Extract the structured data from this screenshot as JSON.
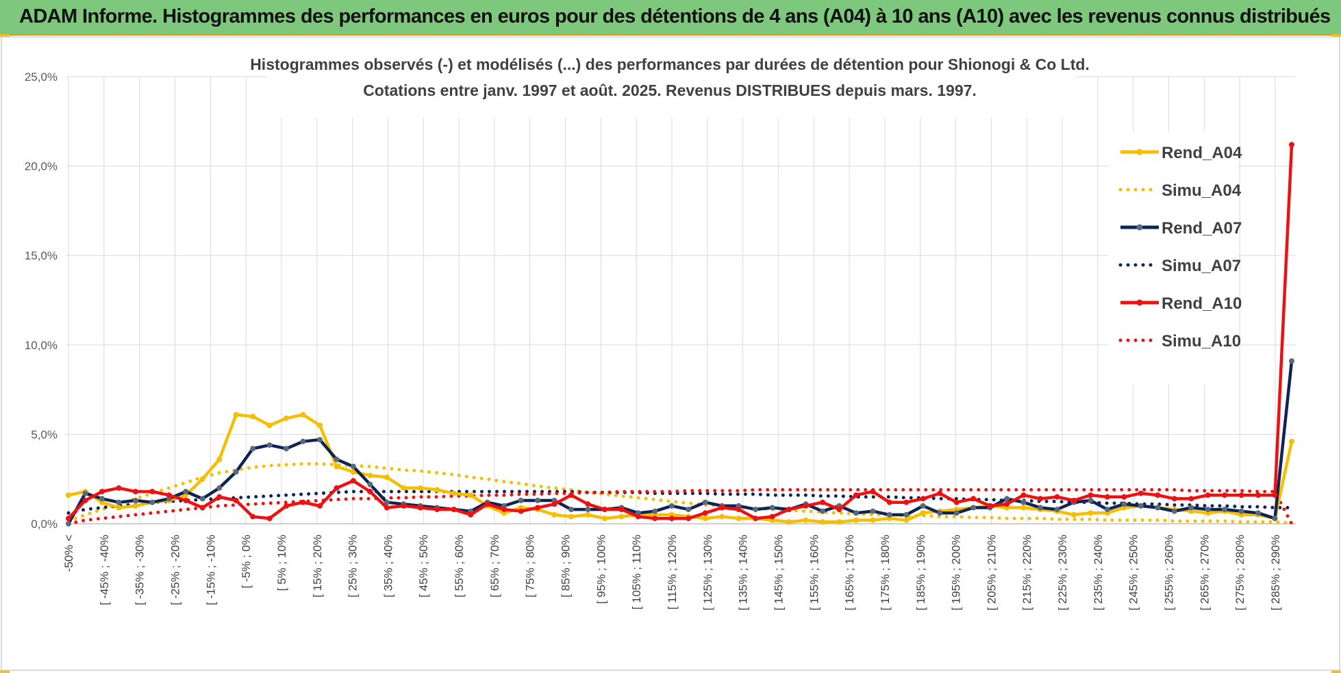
{
  "header": {
    "banner_title": "ADAM Informe. Histogrammes des performances en euros pour des détentions de 4 ans (A04) à 10 ans (A10) avec les revenus connus distribués"
  },
  "colors": {
    "banner_bg": "#7dc87d",
    "corner_accent": "#f0c020",
    "A04": "#f5be00",
    "A07": "#0d2455",
    "A10": "#ee1111",
    "A07_marker": "#5a6a7e",
    "grid": "#d9d9d9"
  },
  "chart_data": {
    "type": "line",
    "title": "Histogrammes observés (-) et modélisés (...) des performances par durées de détention pour Shionogi & Co Ltd.",
    "subtitle": "Cotations entre janv. 1997 et août. 2025. Revenus DISTRIBUES depuis mars. 1997.",
    "xlabel": "",
    "ylabel": "",
    "ylim": [
      0,
      25
    ],
    "y_ticks": [
      "0,0%",
      "5,0%",
      "10,0%",
      "15,0%",
      "20,0%",
      "25,0%"
    ],
    "grid": true,
    "legend_position": "right",
    "x_tick_labels": [
      "-50% <",
      "[ -45% ; -40%",
      "[ -35% ; -30%",
      "[ -25% ; -20%",
      "[ -15% ; -10%",
      "[ -5% ; 0%",
      "[ 5% ; 10%",
      "[ 15% ; 20%",
      "[ 25% ; 30%",
      "[ 35% ; 40%",
      "[ 45% ; 50%",
      "[ 55% ; 60%",
      "[ 65% ; 70%",
      "[ 75% ; 80%",
      "[ 85% ; 90%",
      "[ 95% ; 100%",
      "[ 105% ; 110%",
      "[ 115% ; 120%",
      "[ 125% ; 130%",
      "[ 135% ; 140%",
      "[ 145% ; 150%",
      "[ 155% ; 160%",
      "[ 165% ; 170%",
      "[ 175% ; 180%",
      "[ 185% ; 190%",
      "[ 195% ; 200%",
      "[ 205% ; 210%",
      "[ 215% ; 220%",
      "[ 225% ; 230%",
      "[ 235% ; 240%",
      "[ 245% ; 250%",
      "[ 255% ; 260%",
      "[ 265% ; 270%",
      "[ 275% ; 280%",
      "[ 285% ; 290%"
    ],
    "series": [
      {
        "name": "Rend_A04",
        "style": "solid",
        "color": "#f5be00",
        "values": [
          1.6,
          1.8,
          1.2,
          0.9,
          1.0,
          1.2,
          1.3,
          1.6,
          2.5,
          3.6,
          6.1,
          6.0,
          5.5,
          5.9,
          6.1,
          5.5,
          3.2,
          2.9,
          2.7,
          2.6,
          2.0,
          2.0,
          1.9,
          1.7,
          1.6,
          1.0,
          0.6,
          0.9,
          0.8,
          0.5,
          0.4,
          0.5,
          0.3,
          0.4,
          0.5,
          0.5,
          0.5,
          0.4,
          0.3,
          0.4,
          0.3,
          0.3,
          0.2,
          0.1,
          0.2,
          0.1,
          0.1,
          0.2,
          0.2,
          0.3,
          0.2,
          0.6,
          0.7,
          0.8,
          0.9,
          1.0,
          0.9,
          0.9,
          0.8,
          0.7,
          0.5,
          0.6,
          0.6,
          0.9,
          1.0,
          0.9,
          0.8,
          0.7,
          0.6,
          0.7,
          0.5,
          0.5,
          0.3,
          4.6
        ]
      },
      {
        "name": "Simu_A04",
        "style": "dotted",
        "color": "#f5be00",
        "values": [
          0.15,
          0.5,
          0.8,
          1.1,
          1.4,
          1.7,
          2.0,
          2.3,
          2.6,
          2.85,
          3.0,
          3.15,
          3.25,
          3.3,
          3.35,
          3.35,
          3.3,
          3.25,
          3.2,
          3.1,
          3.0,
          2.95,
          2.85,
          2.75,
          2.6,
          2.5,
          2.35,
          2.25,
          2.1,
          2.0,
          1.9,
          1.75,
          1.65,
          1.55,
          1.45,
          1.35,
          1.25,
          1.15,
          1.05,
          1.0,
          0.9,
          0.85,
          0.8,
          0.75,
          0.7,
          0.65,
          0.6,
          0.55,
          0.5,
          0.5,
          0.45,
          0.45,
          0.4,
          0.4,
          0.35,
          0.35,
          0.3,
          0.3,
          0.3,
          0.25,
          0.25,
          0.25,
          0.2,
          0.2,
          0.2,
          0.2,
          0.15,
          0.15,
          0.15,
          0.15,
          0.1,
          0.1,
          0.1,
          0.05
        ]
      },
      {
        "name": "Rend_A07",
        "style": "solid",
        "color": "#0d2455",
        "values": [
          0.0,
          1.7,
          1.4,
          1.2,
          1.3,
          1.2,
          1.4,
          1.8,
          1.4,
          2.0,
          2.9,
          4.2,
          4.4,
          4.2,
          4.6,
          4.7,
          3.6,
          3.2,
          2.2,
          1.2,
          1.1,
          1.0,
          0.9,
          0.8,
          0.7,
          1.2,
          1.0,
          1.3,
          1.3,
          1.3,
          0.8,
          0.8,
          0.8,
          0.9,
          0.6,
          0.7,
          1.0,
          0.8,
          1.2,
          1.0,
          1.0,
          0.8,
          0.9,
          0.8,
          1.1,
          0.7,
          1.0,
          0.6,
          0.7,
          0.5,
          0.5,
          1.0,
          0.6,
          0.6,
          0.9,
          0.9,
          1.4,
          1.2,
          0.9,
          0.8,
          1.2,
          1.3,
          0.8,
          1.1,
          1.0,
          0.9,
          0.7,
          0.9,
          0.8,
          0.8,
          0.7,
          0.6,
          0.3,
          9.1
        ]
      },
      {
        "name": "Simu_A07",
        "style": "dotted",
        "color": "#0d2455",
        "values": [
          0.6,
          0.8,
          0.9,
          1.0,
          1.1,
          1.2,
          1.25,
          1.3,
          1.35,
          1.4,
          1.45,
          1.5,
          1.55,
          1.6,
          1.65,
          1.7,
          1.75,
          1.8,
          1.8,
          1.8,
          1.8,
          1.8,
          1.8,
          1.8,
          1.8,
          1.8,
          1.8,
          1.8,
          1.8,
          1.8,
          1.8,
          1.75,
          1.75,
          1.75,
          1.75,
          1.7,
          1.7,
          1.7,
          1.7,
          1.65,
          1.65,
          1.65,
          1.6,
          1.6,
          1.6,
          1.55,
          1.55,
          1.5,
          1.5,
          1.5,
          1.45,
          1.45,
          1.4,
          1.4,
          1.35,
          1.35,
          1.3,
          1.3,
          1.25,
          1.25,
          1.2,
          1.2,
          1.15,
          1.15,
          1.1,
          1.1,
          1.05,
          1.05,
          1.0,
          1.0,
          0.95,
          0.95,
          0.9,
          0.9
        ]
      },
      {
        "name": "Rend_A10",
        "style": "solid",
        "color": "#ee1111",
        "values": [
          0.3,
          1.3,
          1.8,
          2.0,
          1.8,
          1.8,
          1.6,
          1.3,
          0.9,
          1.5,
          1.3,
          0.4,
          0.3,
          1.0,
          1.2,
          1.0,
          2.0,
          2.4,
          1.8,
          0.9,
          1.0,
          0.9,
          0.8,
          0.8,
          0.5,
          1.1,
          0.8,
          0.7,
          0.9,
          1.1,
          1.6,
          1.1,
          0.8,
          0.8,
          0.4,
          0.3,
          0.3,
          0.3,
          0.6,
          0.9,
          0.8,
          0.3,
          0.4,
          0.8,
          1.0,
          1.2,
          0.8,
          1.6,
          1.8,
          1.2,
          1.2,
          1.4,
          1.7,
          1.2,
          1.4,
          1.0,
          1.1,
          1.6,
          1.4,
          1.5,
          1.3,
          1.6,
          1.5,
          1.5,
          1.7,
          1.6,
          1.4,
          1.4,
          1.6,
          1.6,
          1.6,
          1.6,
          1.6,
          21.2
        ]
      },
      {
        "name": "Simu_A10",
        "style": "dotted",
        "color": "#ee1111",
        "values": [
          0.0,
          0.2,
          0.3,
          0.4,
          0.5,
          0.6,
          0.7,
          0.8,
          0.9,
          1.0,
          1.05,
          1.1,
          1.15,
          1.2,
          1.25,
          1.3,
          1.35,
          1.4,
          1.4,
          1.45,
          1.45,
          1.5,
          1.5,
          1.55,
          1.55,
          1.6,
          1.6,
          1.65,
          1.65,
          1.7,
          1.7,
          1.75,
          1.75,
          1.8,
          1.8,
          1.8,
          1.8,
          1.85,
          1.85,
          1.85,
          1.85,
          1.9,
          1.9,
          1.9,
          1.9,
          1.9,
          1.9,
          1.9,
          1.9,
          1.9,
          1.9,
          1.9,
          1.9,
          1.9,
          1.9,
          1.9,
          1.9,
          1.9,
          1.9,
          1.9,
          1.9,
          1.9,
          1.9,
          1.9,
          1.9,
          1.9,
          1.9,
          1.85,
          1.85,
          1.85,
          1.85,
          1.8,
          1.8,
          0.0
        ]
      }
    ]
  }
}
